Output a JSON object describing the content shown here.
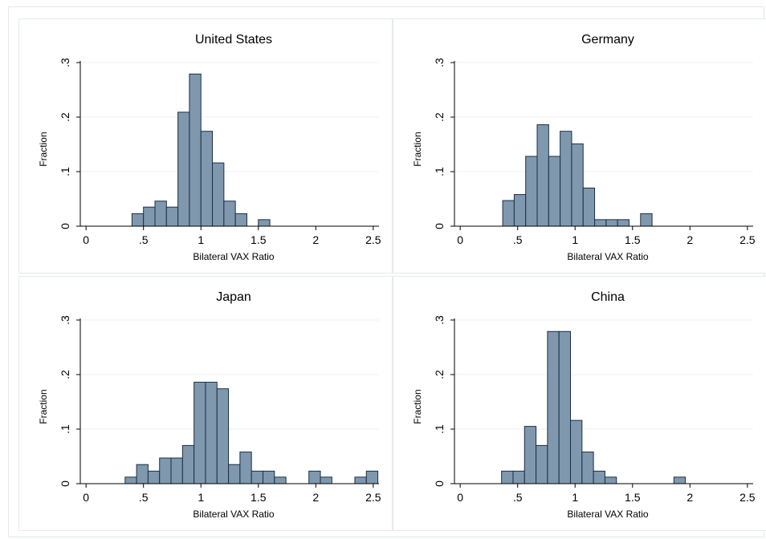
{
  "xlabel": "Bilateral VAX Ratio",
  "ylabel": "Fraction",
  "chart_data": [
    {
      "type": "bar",
      "title": "United States",
      "xlabel": "Bilateral VAX Ratio",
      "ylabel": "Fraction",
      "xlim": [
        -0.05,
        2.55
      ],
      "ylim": [
        0,
        0.3
      ],
      "bin_width": 0.1,
      "xticks": [
        {
          "v": 0,
          "label": "0"
        },
        {
          "v": 0.5,
          "label": ".5"
        },
        {
          "v": 1,
          "label": "1"
        },
        {
          "v": 1.5,
          "label": "1.5"
        },
        {
          "v": 2,
          "label": "2"
        },
        {
          "v": 2.5,
          "label": "2.5"
        }
      ],
      "yticks": [
        {
          "v": 0,
          "label": "0"
        },
        {
          "v": 0.1,
          "label": ".1"
        },
        {
          "v": 0.2,
          "label": ".2"
        },
        {
          "v": 0.3,
          "label": ".3"
        }
      ],
      "bins": [
        {
          "x": 0.4,
          "y": 0.023
        },
        {
          "x": 0.5,
          "y": 0.035
        },
        {
          "x": 0.6,
          "y": 0.046
        },
        {
          "x": 0.7,
          "y": 0.035
        },
        {
          "x": 0.8,
          "y": 0.209
        },
        {
          "x": 0.9,
          "y": 0.279
        },
        {
          "x": 1.0,
          "y": 0.174
        },
        {
          "x": 1.1,
          "y": 0.116
        },
        {
          "x": 1.2,
          "y": 0.046
        },
        {
          "x": 1.3,
          "y": 0.023
        },
        {
          "x": 1.5,
          "y": 0.012
        }
      ]
    },
    {
      "type": "bar",
      "title": "Germany",
      "xlabel": "Bilateral VAX Ratio",
      "ylabel": "Fraction",
      "xlim": [
        -0.05,
        2.55
      ],
      "ylim": [
        0,
        0.3
      ],
      "bin_width": 0.1,
      "xticks": [
        {
          "v": 0,
          "label": "0"
        },
        {
          "v": 0.5,
          "label": ".5"
        },
        {
          "v": 1,
          "label": "1"
        },
        {
          "v": 1.5,
          "label": "1.5"
        },
        {
          "v": 2,
          "label": "2"
        },
        {
          "v": 2.5,
          "label": "2.5"
        }
      ],
      "yticks": [
        {
          "v": 0,
          "label": "0"
        },
        {
          "v": 0.1,
          "label": ".1"
        },
        {
          "v": 0.2,
          "label": ".2"
        },
        {
          "v": 0.3,
          "label": ".3"
        }
      ],
      "bins": [
        {
          "x": 0.37,
          "y": 0.047
        },
        {
          "x": 0.47,
          "y": 0.058
        },
        {
          "x": 0.57,
          "y": 0.128
        },
        {
          "x": 0.67,
          "y": 0.186
        },
        {
          "x": 0.77,
          "y": 0.128
        },
        {
          "x": 0.87,
          "y": 0.174
        },
        {
          "x": 0.97,
          "y": 0.151
        },
        {
          "x": 1.07,
          "y": 0.07
        },
        {
          "x": 1.17,
          "y": 0.012
        },
        {
          "x": 1.27,
          "y": 0.012
        },
        {
          "x": 1.37,
          "y": 0.012
        },
        {
          "x": 1.57,
          "y": 0.023
        }
      ]
    },
    {
      "type": "bar",
      "title": "Japan",
      "xlabel": "Bilateral VAX Ratio",
      "ylabel": "Fraction",
      "xlim": [
        -0.05,
        2.55
      ],
      "ylim": [
        0,
        0.3
      ],
      "bin_width": 0.1,
      "xticks": [
        {
          "v": 0,
          "label": "0"
        },
        {
          "v": 0.5,
          "label": ".5"
        },
        {
          "v": 1,
          "label": "1"
        },
        {
          "v": 1.5,
          "label": "1.5"
        },
        {
          "v": 2,
          "label": "2"
        },
        {
          "v": 2.5,
          "label": "2.5"
        }
      ],
      "yticks": [
        {
          "v": 0,
          "label": "0"
        },
        {
          "v": 0.1,
          "label": ".1"
        },
        {
          "v": 0.2,
          "label": ".2"
        },
        {
          "v": 0.3,
          "label": ".3"
        }
      ],
      "bins": [
        {
          "x": 0.34,
          "y": 0.012
        },
        {
          "x": 0.44,
          "y": 0.035
        },
        {
          "x": 0.54,
          "y": 0.023
        },
        {
          "x": 0.64,
          "y": 0.047
        },
        {
          "x": 0.74,
          "y": 0.047
        },
        {
          "x": 0.84,
          "y": 0.07
        },
        {
          "x": 0.94,
          "y": 0.186
        },
        {
          "x": 1.04,
          "y": 0.186
        },
        {
          "x": 1.14,
          "y": 0.174
        },
        {
          "x": 1.24,
          "y": 0.035
        },
        {
          "x": 1.34,
          "y": 0.058
        },
        {
          "x": 1.44,
          "y": 0.023
        },
        {
          "x": 1.54,
          "y": 0.023
        },
        {
          "x": 1.64,
          "y": 0.012
        },
        {
          "x": 1.94,
          "y": 0.023
        },
        {
          "x": 2.04,
          "y": 0.012
        },
        {
          "x": 2.34,
          "y": 0.012
        },
        {
          "x": 2.44,
          "y": 0.023
        }
      ]
    },
    {
      "type": "bar",
      "title": "China",
      "xlabel": "Bilateral VAX Ratio",
      "ylabel": "Fraction",
      "xlim": [
        -0.05,
        2.55
      ],
      "ylim": [
        0,
        0.3
      ],
      "bin_width": 0.1,
      "xticks": [
        {
          "v": 0,
          "label": "0"
        },
        {
          "v": 0.5,
          "label": ".5"
        },
        {
          "v": 1,
          "label": "1"
        },
        {
          "v": 1.5,
          "label": "1.5"
        },
        {
          "v": 2,
          "label": "2"
        },
        {
          "v": 2.5,
          "label": "2.5"
        }
      ],
      "yticks": [
        {
          "v": 0,
          "label": "0"
        },
        {
          "v": 0.1,
          "label": ".1"
        },
        {
          "v": 0.2,
          "label": ".2"
        },
        {
          "v": 0.3,
          "label": ".3"
        }
      ],
      "bins": [
        {
          "x": 0.36,
          "y": 0.023
        },
        {
          "x": 0.46,
          "y": 0.023
        },
        {
          "x": 0.56,
          "y": 0.105
        },
        {
          "x": 0.66,
          "y": 0.07
        },
        {
          "x": 0.76,
          "y": 0.279
        },
        {
          "x": 0.86,
          "y": 0.279
        },
        {
          "x": 0.96,
          "y": 0.116
        },
        {
          "x": 1.06,
          "y": 0.058
        },
        {
          "x": 1.16,
          "y": 0.023
        },
        {
          "x": 1.26,
          "y": 0.012
        },
        {
          "x": 1.86,
          "y": 0.012
        }
      ]
    }
  ]
}
